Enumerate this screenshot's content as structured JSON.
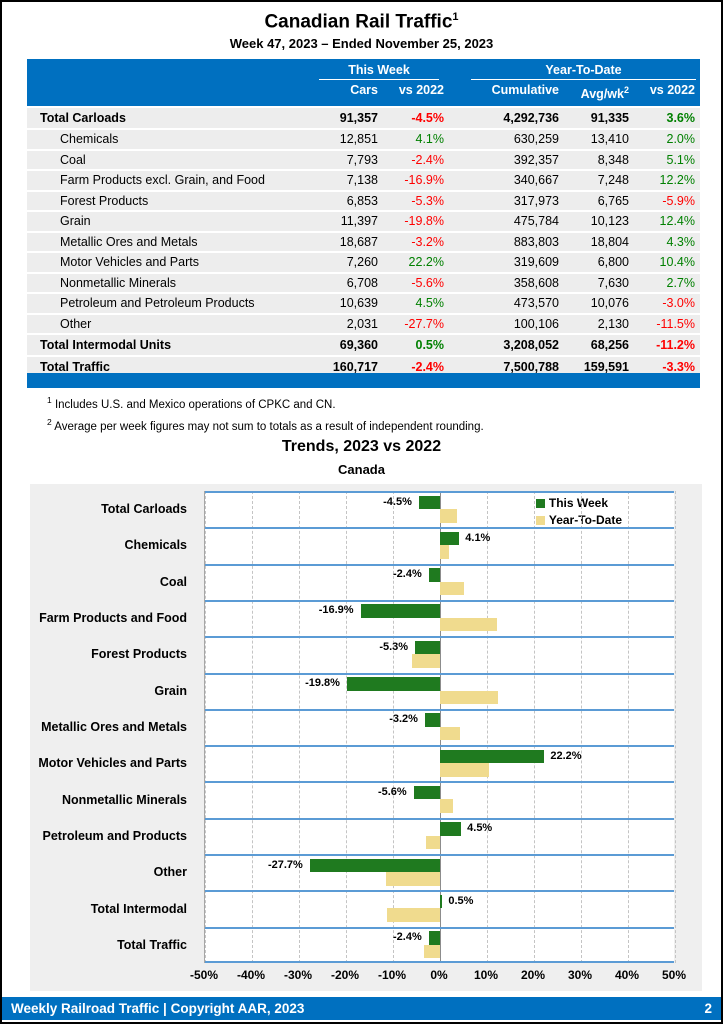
{
  "page": {
    "title": "Canadian Rail Traffic",
    "title_sup": "1",
    "subtitle": "Week 47, 2023 – Ended November 25, 2023"
  },
  "colors": {
    "accent_blue": "#0070C0",
    "separator_blue": "#5B9BD5",
    "row_stripe": "#EDEDED",
    "chart_bg": "#EFEFEF",
    "positive_green": "#008000",
    "negative_red": "#FF0000",
    "bar_green": "#1F7A1F",
    "bar_tan": "#F0DB8E"
  },
  "table": {
    "group_headers": {
      "this_week": "This Week",
      "ytd": "Year-To-Date"
    },
    "columns": [
      "Cars",
      "vs 2022",
      "Cumulative",
      "Avg/wk",
      "vs 2022"
    ],
    "avg_sup": "2",
    "rows": [
      {
        "label": "Total Carloads",
        "total": true,
        "cars": "91,357",
        "cars_vs": "-4.5%",
        "cumulative": "4,292,736",
        "avg_wk": "91,335",
        "ytd_vs": "3.6%"
      },
      {
        "label": "Chemicals",
        "total": false,
        "cars": "12,851",
        "cars_vs": "4.1%",
        "cumulative": "630,259",
        "avg_wk": "13,410",
        "ytd_vs": "2.0%"
      },
      {
        "label": "Coal",
        "total": false,
        "cars": "7,793",
        "cars_vs": "-2.4%",
        "cumulative": "392,357",
        "avg_wk": "8,348",
        "ytd_vs": "5.1%"
      },
      {
        "label": "Farm Products excl. Grain, and Food",
        "total": false,
        "cars": "7,138",
        "cars_vs": "-16.9%",
        "cumulative": "340,667",
        "avg_wk": "7,248",
        "ytd_vs": "12.2%"
      },
      {
        "label": "Forest Products",
        "total": false,
        "cars": "6,853",
        "cars_vs": "-5.3%",
        "cumulative": "317,973",
        "avg_wk": "6,765",
        "ytd_vs": "-5.9%"
      },
      {
        "label": "Grain",
        "total": false,
        "cars": "11,397",
        "cars_vs": "-19.8%",
        "cumulative": "475,784",
        "avg_wk": "10,123",
        "ytd_vs": "12.4%"
      },
      {
        "label": "Metallic Ores and Metals",
        "total": false,
        "cars": "18,687",
        "cars_vs": "-3.2%",
        "cumulative": "883,803",
        "avg_wk": "18,804",
        "ytd_vs": "4.3%"
      },
      {
        "label": "Motor Vehicles and Parts",
        "total": false,
        "cars": "7,260",
        "cars_vs": "22.2%",
        "cumulative": "319,609",
        "avg_wk": "6,800",
        "ytd_vs": "10.4%"
      },
      {
        "label": "Nonmetallic Minerals",
        "total": false,
        "cars": "6,708",
        "cars_vs": "-5.6%",
        "cumulative": "358,608",
        "avg_wk": "7,630",
        "ytd_vs": "2.7%"
      },
      {
        "label": "Petroleum and Petroleum Products",
        "total": false,
        "cars": "10,639",
        "cars_vs": "4.5%",
        "cumulative": "473,570",
        "avg_wk": "10,076",
        "ytd_vs": "-3.0%"
      },
      {
        "label": "Other",
        "total": false,
        "cars": "2,031",
        "cars_vs": "-27.7%",
        "cumulative": "100,106",
        "avg_wk": "2,130",
        "ytd_vs": "-11.5%"
      },
      {
        "label": "Total Intermodal Units",
        "total": true,
        "cars": "69,360",
        "cars_vs": "0.5%",
        "cumulative": "3,208,052",
        "avg_wk": "68,256",
        "ytd_vs": "-11.2%"
      },
      {
        "label": "Total Traffic",
        "total": true,
        "cars": "160,717",
        "cars_vs": "-2.4%",
        "cumulative": "7,500,788",
        "avg_wk": "159,591",
        "ytd_vs": "-3.3%"
      }
    ]
  },
  "footnotes": [
    {
      "sup": "1",
      "text": "Includes U.S. and Mexico operations of CPKC and CN."
    },
    {
      "sup": "2",
      "text": "Average per week figures may not sum to totals as a result of independent rounding."
    }
  ],
  "chart": {
    "title": "Trends, 2023 vs 2022",
    "subtitle": "Canada"
  },
  "chart_data": {
    "type": "bar",
    "orientation": "horizontal",
    "title": "Trends, 2023 vs 2022",
    "subtitle": "Canada",
    "categories": [
      "Total Carloads",
      "Chemicals",
      "Coal",
      "Farm Products and Food",
      "Forest Products",
      "Grain",
      "Metallic Ores and Metals",
      "Motor Vehicles and Parts",
      "Nonmetallic Minerals",
      "Petroleum and Products",
      "Other",
      "Total Intermodal",
      "Total Traffic"
    ],
    "series": [
      {
        "name": "This Week",
        "color": "#1F7A1F",
        "values": [
          -4.5,
          4.1,
          -2.4,
          -16.9,
          -5.3,
          -19.8,
          -3.2,
          22.2,
          -5.6,
          4.5,
          -27.7,
          0.5,
          -2.4
        ]
      },
      {
        "name": "Year-To-Date",
        "color": "#F0DB8E",
        "values": [
          3.6,
          2.0,
          5.1,
          12.2,
          -5.9,
          12.4,
          4.3,
          10.4,
          2.7,
          -3.0,
          -11.5,
          -11.2,
          -3.3
        ]
      }
    ],
    "xlim": [
      -50,
      50
    ],
    "x_ticks": [
      "-50%",
      "-40%",
      "-30%",
      "-20%",
      "-10%",
      "0%",
      "10%",
      "20%",
      "30%",
      "40%",
      "50%"
    ],
    "grid": "vertical-dashed",
    "legend_position": "top-right",
    "bar_labels_series": "This Week"
  },
  "footer": {
    "left": "Weekly Railroad Traffic | Copyright AAR, 2023",
    "page": "2"
  }
}
